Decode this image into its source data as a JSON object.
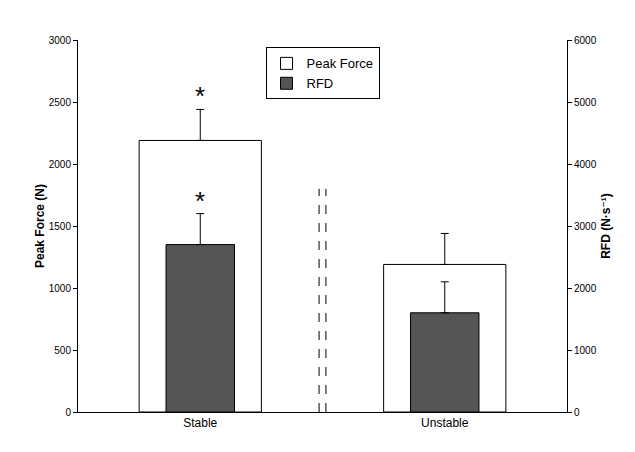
{
  "chart_data": {
    "type": "bar",
    "categories": [
      "Stable",
      "Unstable"
    ],
    "series": [
      {
        "name": "Peak Force",
        "color": "#ffffff",
        "values": [
          2190,
          1190
        ],
        "errors": [
          250,
          250
        ]
      },
      {
        "name": "RFD",
        "color": "#555555",
        "values": [
          2700,
          1600
        ],
        "errors": [
          500,
          500
        ],
        "axis": "y2"
      }
    ],
    "y_label": "Peak Force (N)",
    "y2_label": "RFD (N·s⁻¹)",
    "ylim": [
      0,
      3000
    ],
    "yticks": [
      0,
      500,
      1000,
      1500,
      2000,
      2500,
      3000
    ],
    "y2lim": [
      0,
      6000
    ],
    "y2ticks": [
      0,
      1000,
      2000,
      3000,
      4000,
      5000,
      6000
    ],
    "grid": false,
    "legend": "top",
    "annotations": [
      {
        "category": "Stable",
        "series": "Peak Force",
        "text": "*"
      },
      {
        "category": "Stable",
        "series": "RFD",
        "text": "*"
      }
    ]
  }
}
